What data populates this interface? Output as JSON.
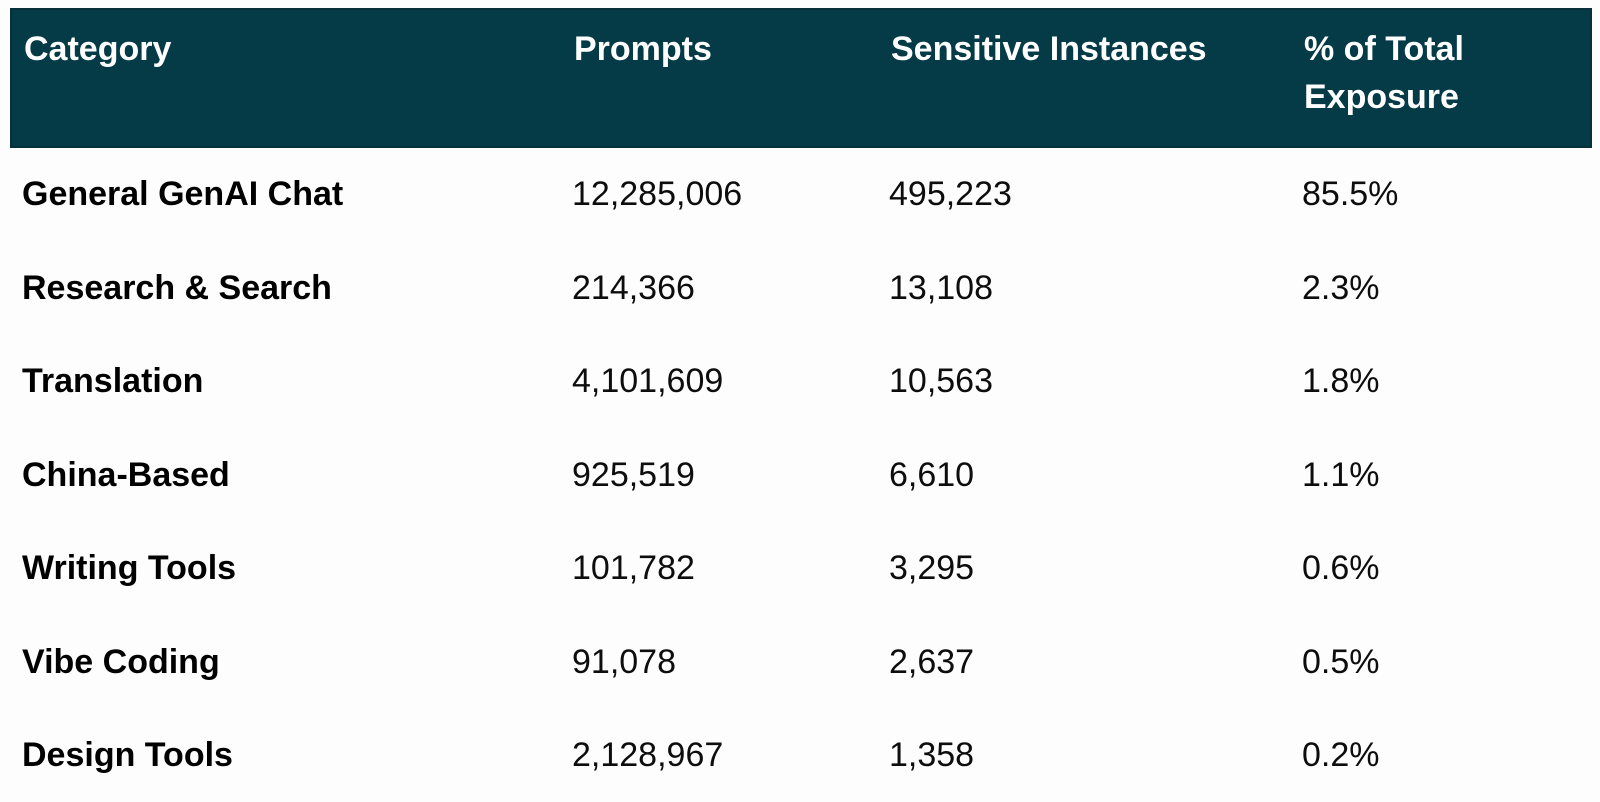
{
  "colors": {
    "header_bg": "#043B47",
    "header_text": "#FFFFFF",
    "body_text": "#000000",
    "page_bg": "#FDFDFD"
  },
  "table": {
    "columns": {
      "category": "Category",
      "prompts": "Prompts",
      "sensitive": "Sensitive Instances",
      "pct": "% of Total Exposure"
    },
    "rows": [
      {
        "category": "General GenAI Chat",
        "prompts": "12,285,006",
        "sensitive": "495,223",
        "pct": "85.5%"
      },
      {
        "category": "Research & Search",
        "prompts": "214,366",
        "sensitive": "13,108",
        "pct": "2.3%"
      },
      {
        "category": "Translation",
        "prompts": "4,101,609",
        "sensitive": "10,563",
        "pct": "1.8%"
      },
      {
        "category": "China-Based",
        "prompts": "925,519",
        "sensitive": "6,610",
        "pct": "1.1%"
      },
      {
        "category": "Writing Tools",
        "prompts": "101,782",
        "sensitive": "3,295",
        "pct": "0.6%"
      },
      {
        "category": "Vibe Coding",
        "prompts": "91,078",
        "sensitive": "2,637",
        "pct": "0.5%"
      },
      {
        "category": "Design Tools",
        "prompts": "2,128,967",
        "sensitive": "1,358",
        "pct": "0.2%"
      }
    ]
  },
  "chart_data": {
    "type": "table",
    "columns": [
      "Category",
      "Prompts",
      "Sensitive Instances",
      "% of Total Exposure"
    ],
    "rows": [
      [
        "General GenAI Chat",
        12285006,
        495223,
        85.5
      ],
      [
        "Research & Search",
        214366,
        13108,
        2.3
      ],
      [
        "Translation",
        4101609,
        10563,
        1.8
      ],
      [
        "China-Based",
        925519,
        6610,
        1.1
      ],
      [
        "Writing Tools",
        101782,
        3295,
        0.6
      ],
      [
        "Vibe Coding",
        91078,
        2637,
        0.5
      ],
      [
        "Design Tools",
        2128967,
        1358,
        0.2
      ]
    ],
    "pct_unit": "%"
  }
}
